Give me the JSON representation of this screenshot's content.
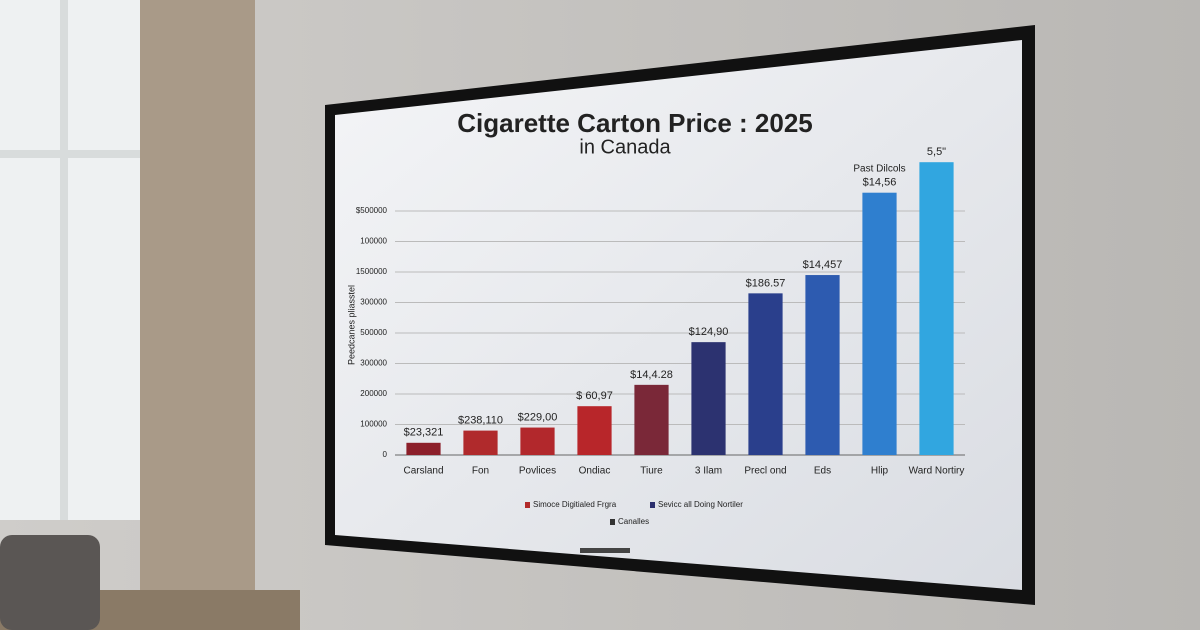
{
  "chart_data": {
    "type": "bar",
    "title": "Cigarette Carton Price : 2025",
    "subtitle": "in Canada",
    "y_label": "Peedcanes pliasstel",
    "categories": [
      "Carsland",
      "Fon",
      "Povlices",
      "Ondiac",
      "Tiure",
      "3 Ilam",
      "Precl ond",
      "Eds",
      "Hlip",
      "Ward Nortiry"
    ],
    "values": [
      0.4,
      0.8,
      0.9,
      1.6,
      2.3,
      3.7,
      5.3,
      5.9,
      8.6,
      9.6
    ],
    "colors": [
      "#8c1f2a",
      "#b02a2c",
      "#b2282c",
      "#b8262a",
      "#7a2838",
      "#2c3270",
      "#2a3f8c",
      "#2d5bb0",
      "#2f7fcf",
      "#31a6e0"
    ],
    "bar_labels": [
      "$23,321",
      "$238,110",
      "$229,00",
      "$ 60,97",
      "$14,4.28",
      "$124,90",
      "$186.57",
      "$14,457",
      "$14,56",
      "5,5\""
    ],
    "annotation": "Past Dilcols",
    "ylim": [
      0,
      10
    ],
    "yticks": [
      {
        "value": 0,
        "label": "0"
      },
      {
        "value": 1,
        "label": "100000"
      },
      {
        "value": 2,
        "label": "200000"
      },
      {
        "value": 3,
        "label": "300000"
      },
      {
        "value": 4,
        "label": "500000"
      },
      {
        "value": 5,
        "label": "300000"
      },
      {
        "value": 6,
        "label": "1500000"
      },
      {
        "value": 7,
        "label": "100000"
      },
      {
        "value": 8,
        "label": "$500000"
      }
    ],
    "grid": true,
    "legend": [
      {
        "label": "Simoce Digitialed Frgra",
        "color": "#b22a2a"
      },
      {
        "label": "Sevicc all Doing Nortiler",
        "color": "#2b2f6e"
      },
      {
        "label": "Canalles",
        "color": "#333333"
      }
    ]
  }
}
